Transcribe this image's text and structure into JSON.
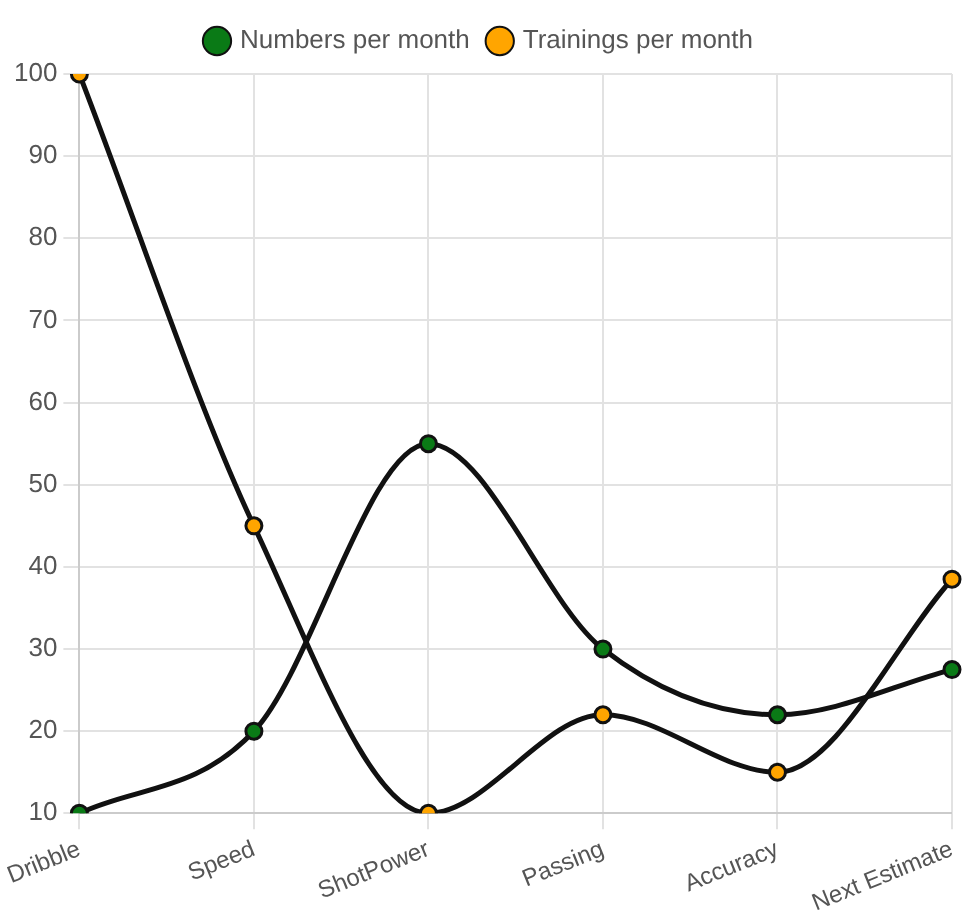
{
  "chart_data": {
    "type": "line",
    "categories": [
      "Dribble",
      "Speed",
      "ShotPower",
      "Passing",
      "Accuracy",
      "Next Estimate"
    ],
    "series": [
      {
        "name": "Numbers per month",
        "color": "#0a7a16",
        "values": [
          10,
          20,
          55,
          30,
          22,
          27.5
        ]
      },
      {
        "name": "Trainings per month",
        "color": "#ffa500",
        "values": [
          100,
          45,
          10,
          22,
          15,
          38.5
        ]
      }
    ],
    "ylim": [
      10,
      100
    ],
    "yticks": [
      10,
      20,
      30,
      40,
      50,
      60,
      70,
      80,
      90,
      100
    ],
    "grid": true,
    "legend": "top",
    "marker": "circle",
    "line_style": "solid"
  }
}
